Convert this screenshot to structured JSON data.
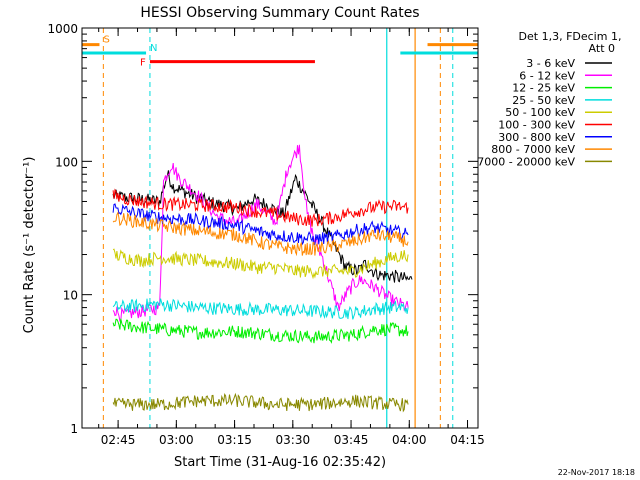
{
  "chart_data": {
    "type": "line",
    "title": "HESSI Observing Summary Count Rates",
    "xlabel": "Start Time (31-Aug-16 02:35:42)",
    "ylabel": "Count Rate (s⁻¹ detector⁻¹)",
    "yscale": "log",
    "ylim": [
      1,
      1000
    ],
    "xlim_minutes": [
      0,
      102
    ],
    "x_unit": "minutes after start",
    "x_ticks": [
      {
        "label": "02:45",
        "value": 9.3
      },
      {
        "label": "03:00",
        "value": 24.3
      },
      {
        "label": "03:15",
        "value": 39.3
      },
      {
        "label": "03:30",
        "value": 54.3
      },
      {
        "label": "03:45",
        "value": 69.3
      },
      {
        "label": "04:00",
        "value": 84.3
      },
      {
        "label": "04:15",
        "value": 99.3
      }
    ],
    "y_ticks": [
      {
        "label": "1",
        "value": 1
      },
      {
        "label": "10",
        "value": 10
      },
      {
        "label": "100",
        "value": 100
      },
      {
        "label": "1000",
        "value": 1000
      }
    ],
    "legend_header": [
      "Det 1,3, FDecim 1,",
      "Att 0"
    ],
    "legend_position": "right",
    "grid": false,
    "series": [
      {
        "name": "3 - 6 keV",
        "color": "#000000",
        "x": [
          8,
          20,
          22,
          23.5,
          27,
          32,
          40,
          44,
          47,
          52,
          55,
          59,
          63,
          68,
          71,
          73,
          75,
          77,
          79,
          84,
          85
        ],
        "values": [
          55,
          50,
          80,
          65,
          58,
          50,
          44,
          52,
          48,
          40,
          75,
          48,
          30,
          16,
          15,
          17,
          15,
          14,
          14,
          13,
          13
        ]
      },
      {
        "name": "6 - 12 keV",
        "color": "#ff00ff",
        "x": [
          8,
          10,
          20,
          21,
          23,
          25,
          30,
          35,
          40,
          45,
          50,
          53,
          56,
          58,
          60,
          62,
          64,
          66,
          68,
          70,
          72,
          74,
          76,
          78,
          80,
          84
        ],
        "values": [
          8,
          7,
          8,
          70,
          95,
          75,
          55,
          38,
          34,
          48,
          35,
          90,
          130,
          40,
          25,
          19,
          12,
          8,
          10,
          12,
          13,
          12,
          11,
          10,
          9,
          8
        ]
      },
      {
        "name": "12 - 25 keV",
        "color": "#00ee00",
        "x": [
          8,
          20,
          30,
          40,
          50,
          60,
          70,
          75,
          80,
          84
        ],
        "values": [
          6,
          5.5,
          5.2,
          5.3,
          5,
          4.8,
          5,
          5.5,
          5.5,
          5.3
        ]
      },
      {
        "name": "25 - 50 keV",
        "color": "#00dddd",
        "x": [
          8,
          20,
          30,
          40,
          50,
          60,
          70,
          75,
          80,
          84
        ],
        "values": [
          8,
          8.5,
          8,
          7.8,
          7.7,
          7.5,
          7.3,
          7.8,
          8,
          8
        ]
      },
      {
        "name": "50 - 100 keV",
        "color": "#cccc00",
        "x": [
          8,
          15,
          20,
          30,
          40,
          45,
          50,
          55,
          60,
          65,
          70,
          75,
          80,
          84
        ],
        "values": [
          20,
          18,
          19,
          18,
          17,
          16,
          16,
          15,
          15,
          15,
          15,
          17,
          19,
          20
        ]
      },
      {
        "name": "100 - 300 keV",
        "color": "#ff0000",
        "x": [
          8,
          15,
          20,
          30,
          40,
          45,
          50,
          55,
          60,
          65,
          70,
          75,
          80,
          84
        ],
        "values": [
          55,
          50,
          48,
          47,
          45,
          42,
          40,
          37,
          36,
          38,
          42,
          45,
          46,
          45
        ]
      },
      {
        "name": "300 - 800 keV",
        "color": "#0000ff",
        "x": [
          8,
          15,
          20,
          30,
          40,
          45,
          50,
          55,
          60,
          65,
          70,
          75,
          80,
          84
        ],
        "values": [
          45,
          40,
          38,
          36,
          33,
          30,
          28,
          27,
          26,
          27,
          30,
          32,
          30,
          28
        ]
      },
      {
        "name": "800 - 7000 keV",
        "color": "#ff8800",
        "x": [
          8,
          15,
          20,
          30,
          40,
          45,
          50,
          55,
          60,
          65,
          70,
          75,
          80,
          84
        ],
        "values": [
          38,
          35,
          33,
          30,
          28,
          25,
          23,
          22,
          22,
          23,
          25,
          28,
          27,
          25
        ]
      },
      {
        "name": "7000 - 20000 keV",
        "color": "#888800",
        "x": [
          8,
          20,
          30,
          40,
          50,
          60,
          70,
          80,
          84
        ],
        "values": [
          1.5,
          1.5,
          1.6,
          1.6,
          1.5,
          1.5,
          1.6,
          1.5,
          1.5
        ]
      }
    ],
    "annotations": [
      {
        "label": "S",
        "color": "#ff8800",
        "x_start": 0,
        "x_end": 4.5,
        "y": 750
      },
      {
        "label": "N",
        "color": "#00dddd",
        "x_start": 0,
        "x_end": 16.5,
        "y": 650
      },
      {
        "label": "F",
        "color": "#ff0000",
        "x_start": 17.5,
        "x_end": 60,
        "y": 560
      },
      {
        "label": "",
        "color": "#00dddd",
        "x_start": 82,
        "x_end": 102,
        "y": 650
      },
      {
        "label": "",
        "color": "#ff8800",
        "x_start": 89,
        "x_end": 102,
        "y": 750
      }
    ],
    "vertical_lines": [
      {
        "x": 5.5,
        "color": "#ff8800",
        "style": "dashed"
      },
      {
        "x": 17.5,
        "color": "#00dddd",
        "style": "dashed"
      },
      {
        "x": 78.5,
        "color": "#00dddd",
        "style": "solid"
      },
      {
        "x": 85.8,
        "color": "#ff8800",
        "style": "solid"
      },
      {
        "x": 95.5,
        "color": "#00dddd",
        "style": "dashed"
      },
      {
        "x": 92.3,
        "color": "#ff8800",
        "style": "dashed"
      }
    ]
  },
  "footer": {
    "timestamp": "22-Nov-2017 18:18"
  }
}
